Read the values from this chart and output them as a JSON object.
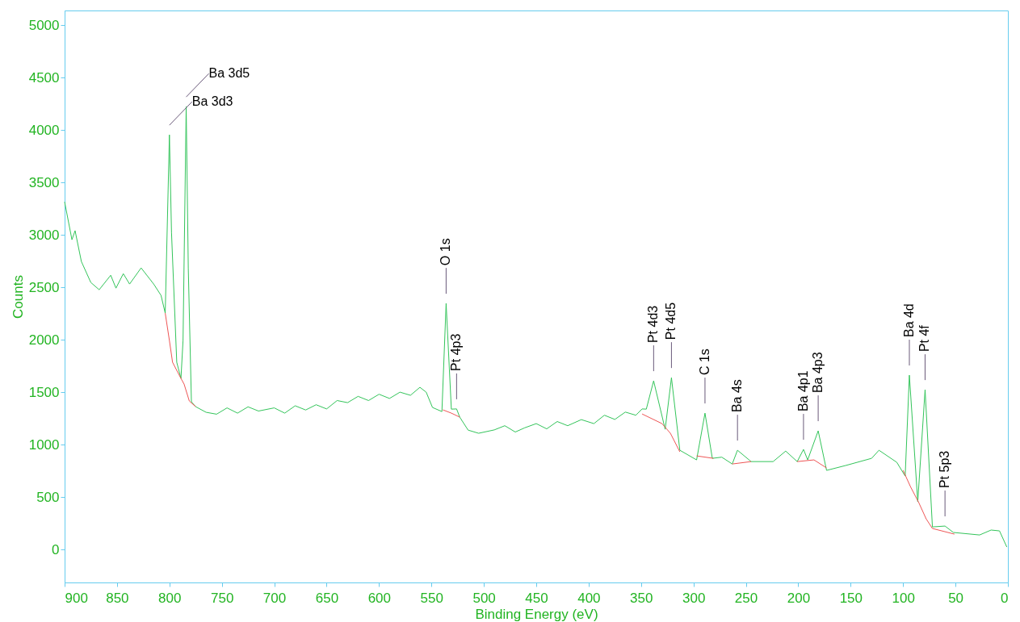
{
  "chart_data": {
    "type": "line",
    "xlabel": "Binding Energy (eV)",
    "ylabel": "Counts",
    "xlim": [
      900,
      0
    ],
    "ylim": [
      -315,
      5140
    ],
    "xticks": [
      900,
      850,
      800,
      750,
      700,
      650,
      600,
      550,
      500,
      450,
      400,
      350,
      300,
      250,
      200,
      150,
      100,
      50,
      0
    ],
    "yticks": [
      0,
      500,
      1000,
      1500,
      2000,
      2500,
      3000,
      3500,
      4000,
      4500,
      5000
    ],
    "grid": false,
    "marker": "none",
    "line_style": "solid",
    "series": [
      {
        "color": "#33c45a",
        "x": [
          900,
          893,
          890,
          884,
          875,
          867,
          856,
          851,
          844,
          838,
          827,
          815,
          808,
          804,
          800,
          798,
          793,
          789,
          787,
          784,
          782,
          779,
          775,
          765,
          755,
          745,
          735,
          725,
          715,
          700,
          690,
          680,
          670,
          660,
          650,
          640,
          630,
          620,
          610,
          600,
          590,
          580,
          570,
          561,
          555,
          549,
          540,
          536,
          531,
          526,
          523,
          515,
          505,
          490,
          480,
          470,
          461,
          450,
          440,
          430,
          420,
          407,
          395,
          385,
          375,
          365,
          355,
          349,
          345,
          338,
          327,
          321,
          313,
          297,
          289,
          282,
          273,
          263,
          258,
          245,
          224,
          212,
          201,
          195,
          191,
          181,
          173,
          155,
          130,
          123,
          106,
          98,
          94,
          86,
          79,
          72,
          60,
          52,
          27,
          16,
          8,
          1
        ],
        "values": [
          3315,
          2954,
          3040,
          2746,
          2546,
          2477,
          2615,
          2492,
          2630,
          2531,
          2685,
          2531,
          2423,
          2254,
          3954,
          3023,
          1785,
          1631,
          1992,
          4223,
          2685,
          1408,
          1362,
          1308,
          1290,
          1350,
          1300,
          1360,
          1320,
          1350,
          1300,
          1370,
          1330,
          1380,
          1340,
          1420,
          1400,
          1460,
          1420,
          1480,
          1440,
          1500,
          1470,
          1546,
          1500,
          1354,
          1315,
          2346,
          1338,
          1340,
          1262,
          1138,
          1108,
          1140,
          1180,
          1120,
          1160,
          1200,
          1150,
          1220,
          1180,
          1238,
          1200,
          1280,
          1240,
          1310,
          1280,
          1340,
          1338,
          1608,
          1146,
          1638,
          946,
          854,
          1300,
          869,
          880,
          815,
          946,
          838,
          838,
          938,
          838,
          954,
          854,
          1131,
          754,
          800,
          869,
          946,
          831,
          700,
          1662,
          454,
          1523,
          215,
          223,
          162,
          138,
          185,
          177,
          23
        ]
      },
      {
        "color": "#ee5555",
        "x": [
          804,
          800,
          797,
          789,
          786,
          781,
          775,
          null,
          539,
          531,
          523,
          null,
          349,
          330,
          322,
          313,
          null,
          297,
          281,
          null,
          263,
          245,
          null,
          201,
          185,
          173,
          null,
          100,
          93,
          85,
          78,
          72,
          51
        ],
        "values": [
          2254,
          1992,
          1785,
          1631,
          1577,
          1415,
          1362,
          null,
          1331,
          1300,
          1262,
          null,
          1292,
          1200,
          1108,
          931,
          null,
          892,
          869,
          null,
          815,
          838,
          null,
          838,
          854,
          777,
          null,
          754,
          600,
          446,
          292,
          200,
          146
        ]
      }
    ],
    "annotations": [
      {
        "text": "Ba 3d5",
        "x": 784,
        "y": 4223
      },
      {
        "text": "Ba 3d3",
        "x": 800,
        "y": 3954
      },
      {
        "text": "O 1s",
        "x": 536,
        "y": 2346
      },
      {
        "text": "Pt 4p3",
        "x": 526,
        "y": 1340
      },
      {
        "text": "Pt 4d3",
        "x": 338,
        "y": 1608
      },
      {
        "text": "Pt 4d5",
        "x": 321,
        "y": 1638
      },
      {
        "text": "C 1s",
        "x": 289,
        "y": 1300
      },
      {
        "text": "Ba 4s",
        "x": 258,
        "y": 946
      },
      {
        "text": "Ba 4p1",
        "x": 195,
        "y": 954
      },
      {
        "text": "Ba 4p3",
        "x": 181,
        "y": 1131
      },
      {
        "text": "Ba 4d",
        "x": 94,
        "y": 1662
      },
      {
        "text": "Pt 4f",
        "x": 79,
        "y": 1523
      },
      {
        "text": "Pt 5p3",
        "x": 60,
        "y": 223
      }
    ]
  }
}
